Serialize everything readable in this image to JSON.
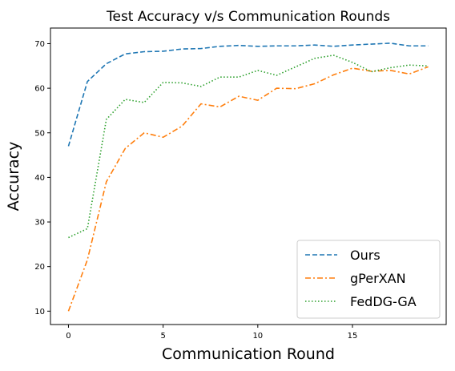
{
  "chart_data": {
    "type": "line",
    "title": "Test Accuracy v/s Communication Rounds",
    "xlabel": "Communication Round",
    "ylabel": "Accuracy",
    "xlim": [
      -0.95,
      19.95
    ],
    "ylim": [
      7.0,
      73.5
    ],
    "xticks": [
      0,
      5,
      10,
      15
    ],
    "yticks": [
      10,
      20,
      30,
      40,
      50,
      60,
      70
    ],
    "grid": false,
    "legend_position": "lower-right",
    "x": [
      0,
      1,
      2,
      3,
      4,
      5,
      6,
      7,
      8,
      9,
      10,
      11,
      12,
      13,
      14,
      15,
      16,
      17,
      18,
      19
    ],
    "series": [
      {
        "name": "Ours",
        "color": "#1f77b4",
        "style": "dashed",
        "values": [
          47.0,
          61.5,
          65.5,
          67.7,
          68.2,
          68.3,
          68.8,
          68.9,
          69.4,
          69.6,
          69.4,
          69.5,
          69.5,
          69.7,
          69.4,
          69.7,
          69.9,
          70.1,
          69.5,
          69.5
        ]
      },
      {
        "name": "gPerXAN",
        "color": "#ff7f0e",
        "style": "dashdot",
        "values": [
          10.0,
          21.5,
          39.0,
          46.5,
          50.0,
          49.0,
          51.5,
          56.5,
          55.8,
          58.2,
          57.3,
          60.0,
          59.9,
          61.0,
          63.0,
          64.5,
          63.8,
          64.0,
          63.2,
          64.8
        ]
      },
      {
        "name": "FedDG-GA",
        "color": "#2ca02c",
        "style": "dotted",
        "values": [
          26.5,
          28.5,
          53.0,
          57.5,
          56.8,
          61.3,
          61.2,
          60.4,
          62.5,
          62.5,
          64.0,
          62.9,
          64.8,
          66.7,
          67.4,
          65.8,
          63.7,
          64.6,
          65.2,
          65.0
        ]
      }
    ]
  }
}
